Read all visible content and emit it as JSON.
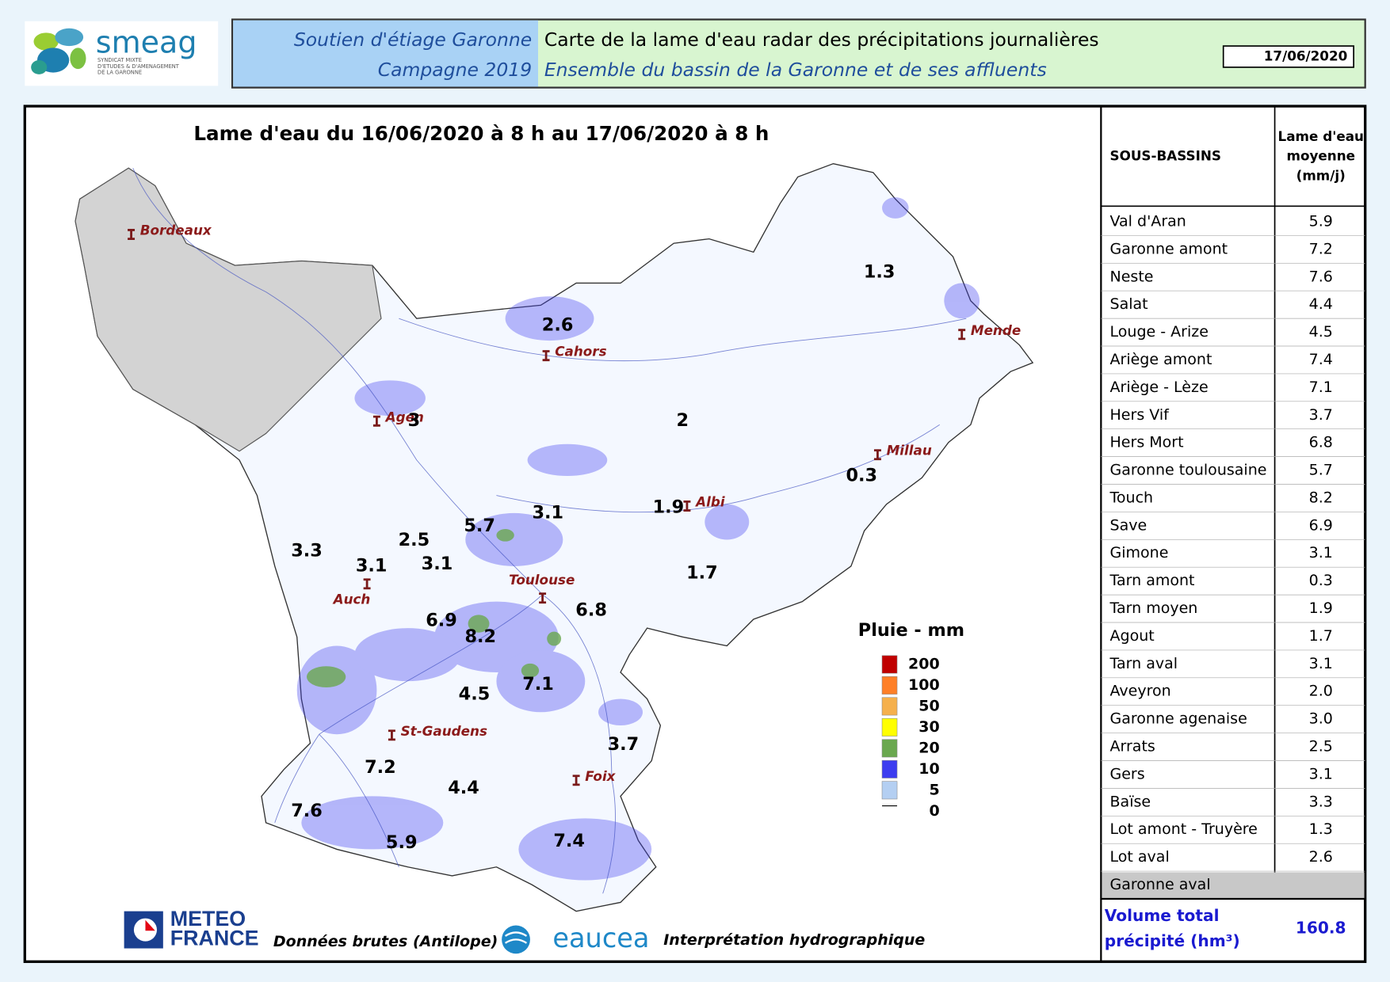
{
  "header": {
    "logo": {
      "name": "smeag",
      "tagline": [
        "SYNDICAT MIXTE",
        "D'ETUDES & D'AMENAGEMENT",
        "DE LA GARONNE"
      ]
    },
    "left": [
      "Soutien d'étiage Garonne",
      "Campagne 2019"
    ],
    "title": "Carte de la lame d'eau radar des précipitations journalières",
    "subtitle": "Ensemble du bassin de la Garonne et de ses affluents",
    "date": "17/06/2020"
  },
  "map": {
    "title": "Lame d'eau du 16/06/2020 à 8 h au 17/06/2020 à 8 h",
    "cities": [
      "Bordeaux",
      "Cahors",
      "Mende",
      "Agen",
      "Millau",
      "Albi",
      "Toulouse",
      "Auch",
      "St-Gaudens",
      "Foix"
    ],
    "basin_labels": [
      "1.3",
      "2.6",
      "3",
      "2",
      "0.3",
      "1.9",
      "3.1",
      "5.7",
      "2.5",
      "3.3",
      "3.1",
      "3.1",
      "1.7",
      "6.9",
      "6.8",
      "8.2",
      "7.1",
      "4.5",
      "3.7",
      "7.2",
      "4.4",
      "7.6",
      "5.9",
      "7.4"
    ],
    "legend": {
      "title": "Pluie - mm",
      "items": [
        {
          "label": 200,
          "color": "#c00000"
        },
        {
          "label": 100,
          "color": "#ff7f27"
        },
        {
          "label": 50,
          "color": "#f5b04c"
        },
        {
          "label": 30,
          "color": "#ffff00"
        },
        {
          "label": 20,
          "color": "#6aa84f"
        },
        {
          "label": 10,
          "color": "#3c3cf0"
        },
        {
          "label": 5,
          "color": "#b4cff2"
        },
        {
          "label": 0,
          "color": "#ffffff"
        }
      ]
    }
  },
  "table": {
    "header": {
      "name": "SOUS-BASSINS",
      "value": [
        "Lame d'eau",
        "moyenne",
        "(mm/j)"
      ]
    },
    "rows": [
      {
        "name": "Val d'Aran",
        "value": "5.9"
      },
      {
        "name": "Garonne amont",
        "value": "7.2"
      },
      {
        "name": "Neste",
        "value": "7.6"
      },
      {
        "name": "Salat",
        "value": "4.4"
      },
      {
        "name": "Louge - Arize",
        "value": "4.5"
      },
      {
        "name": "Ariège amont",
        "value": "7.4"
      },
      {
        "name": "Ariège - Lèze",
        "value": "7.1"
      },
      {
        "name": "Hers Vif",
        "value": "3.7"
      },
      {
        "name": "Hers Mort",
        "value": "6.8"
      },
      {
        "name": "Garonne toulousaine",
        "value": "5.7"
      },
      {
        "name": "Touch",
        "value": "8.2"
      },
      {
        "name": "Save",
        "value": "6.9"
      },
      {
        "name": "Gimone",
        "value": "3.1"
      },
      {
        "name": "Tarn amont",
        "value": "0.3"
      },
      {
        "name": "Tarn moyen",
        "value": "1.9"
      },
      {
        "name": "Agout",
        "value": "1.7"
      },
      {
        "name": "Tarn aval",
        "value": "3.1"
      },
      {
        "name": "Aveyron",
        "value": "2.0"
      },
      {
        "name": "Garonne agenaise",
        "value": "3.0"
      },
      {
        "name": "Arrats",
        "value": "2.5"
      },
      {
        "name": "Gers",
        "value": "3.1"
      },
      {
        "name": "Baïse",
        "value": "3.3"
      },
      {
        "name": "Lot amont - Truyère",
        "value": "1.3"
      },
      {
        "name": "Lot aval",
        "value": "2.6"
      },
      {
        "name": "Garonne aval"
      }
    ],
    "total": {
      "label": [
        "Volume total",
        "précipité (hm³)"
      ],
      "value": "160.8"
    }
  },
  "footer": {
    "meteo": [
      "METEO",
      "FRANCE"
    ],
    "source": "Données brutes (Antilope)",
    "eaucea": "eaucea",
    "interpretation": "Interprétation hydrographique"
  }
}
